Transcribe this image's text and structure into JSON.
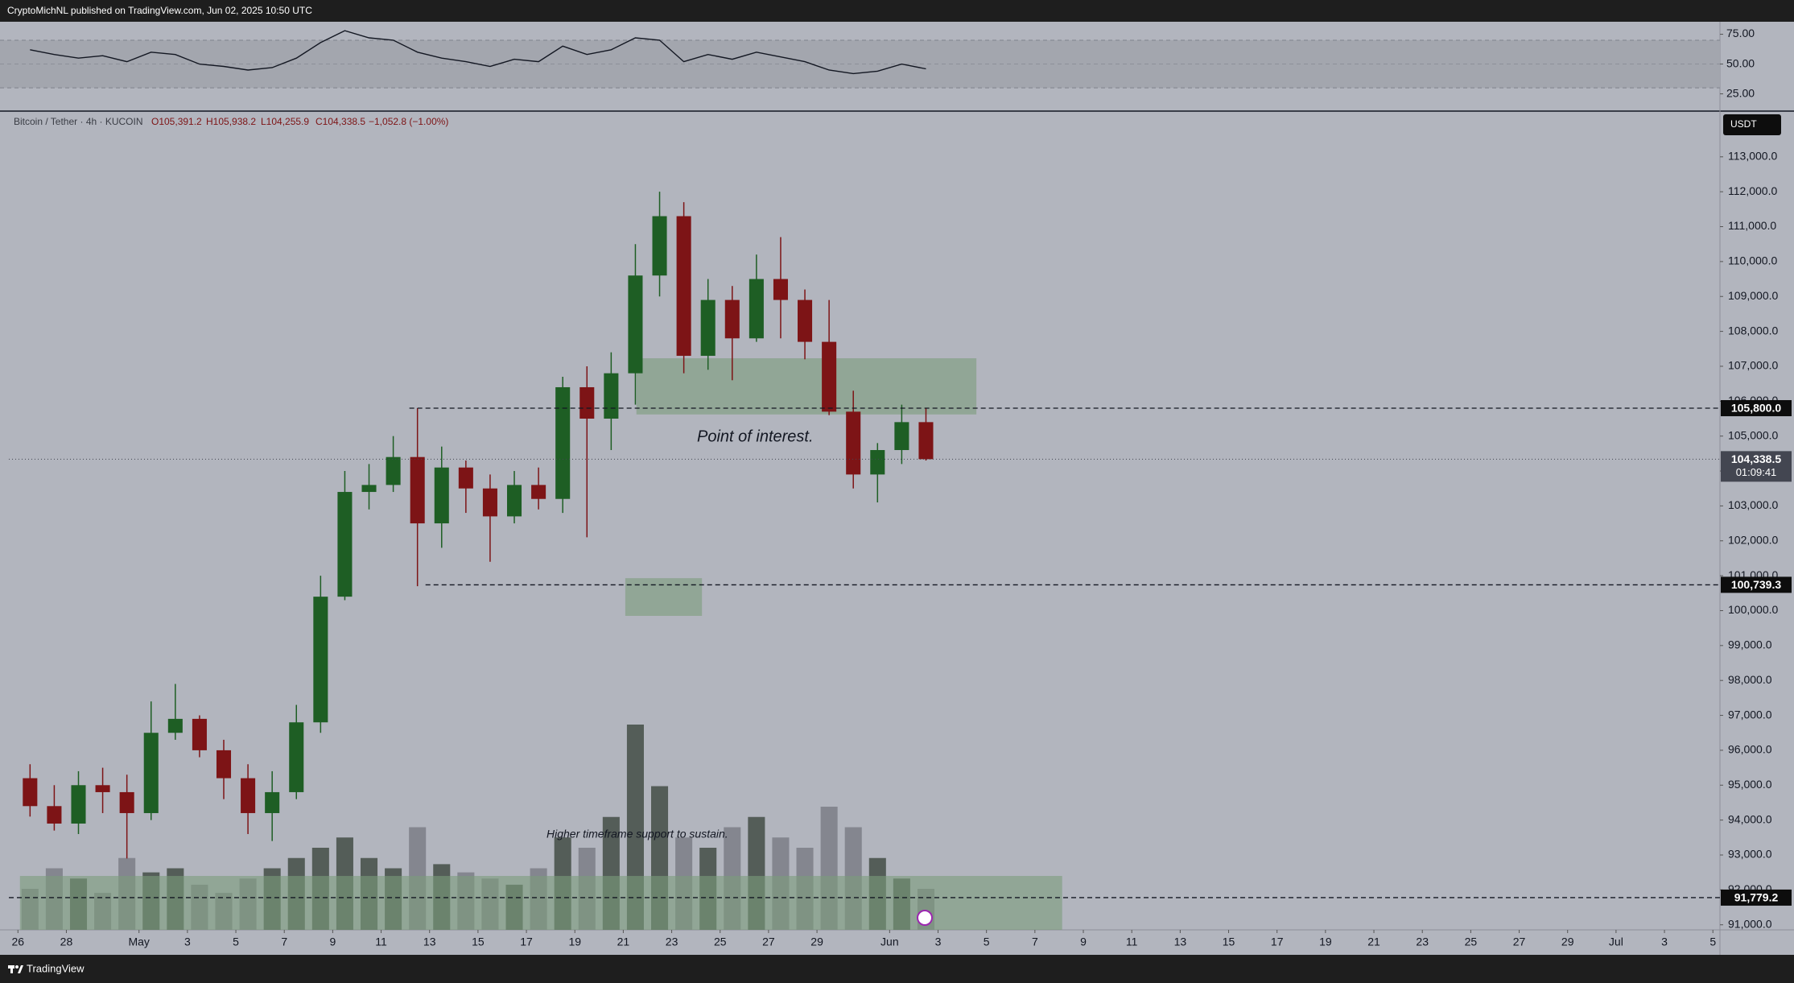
{
  "header": {
    "publisher": "CryptoMichNL published on TradingView.com, Jun 02, 2025 10:50 UTC"
  },
  "footer": {
    "brand": "TradingView"
  },
  "chart_data": {
    "type": "candlestick",
    "legend": {
      "symbol": "Bitcoin / Tether · 4h · KUCOIN",
      "open": "O105,391.2",
      "high": "H105,938.2",
      "low": "L104,255.9",
      "close": "C104,338.5",
      "change": "−1,052.8 (−1.00%)"
    },
    "currency": "USDT",
    "x": [
      "2025-04-26",
      "2025-04-27",
      "2025-04-28",
      "2025-04-29",
      "2025-04-30",
      "2025-05-01",
      "2025-05-02",
      "2025-05-03",
      "2025-05-04",
      "2025-05-05",
      "2025-05-06",
      "2025-05-07",
      "2025-05-08",
      "2025-05-09",
      "2025-05-10",
      "2025-05-11",
      "2025-05-12",
      "2025-05-13",
      "2025-05-14",
      "2025-05-15",
      "2025-05-16",
      "2025-05-17",
      "2025-05-18",
      "2025-05-19",
      "2025-05-20",
      "2025-05-21",
      "2025-05-22",
      "2025-05-23",
      "2025-05-24",
      "2025-05-25",
      "2025-05-26",
      "2025-05-27",
      "2025-05-28",
      "2025-05-29",
      "2025-05-30",
      "2025-05-31",
      "2025-06-01",
      "2025-06-02"
    ],
    "open": [
      95200,
      94400,
      93900,
      95000,
      94800,
      94200,
      96500,
      96900,
      96000,
      95200,
      94200,
      94800,
      96800,
      100400,
      103400,
      103600,
      104400,
      102500,
      104100,
      103500,
      102700,
      103600,
      103200,
      106400,
      105500,
      106800,
      109600,
      111300,
      107300,
      108900,
      107800,
      109500,
      108900,
      107700,
      105700,
      103900,
      104600,
      105400
    ],
    "high": [
      95600,
      95000,
      95400,
      95500,
      95300,
      97400,
      97900,
      97000,
      96300,
      95600,
      95400,
      97300,
      101000,
      104000,
      104200,
      105000,
      105800,
      104700,
      104300,
      103900,
      104000,
      104100,
      106700,
      107000,
      107400,
      110500,
      112000,
      111700,
      109500,
      109300,
      110200,
      110700,
      109200,
      108900,
      106300,
      104800,
      105900,
      105800
    ],
    "low": [
      94100,
      93700,
      93600,
      94200,
      92900,
      94000,
      96300,
      95800,
      94600,
      93600,
      93400,
      94600,
      96500,
      100300,
      102900,
      103400,
      100700,
      101800,
      102800,
      101400,
      102500,
      102900,
      102800,
      102100,
      104600,
      105900,
      109000,
      106800,
      106900,
      106600,
      107700,
      107800,
      107200,
      105600,
      103500,
      103100,
      104200,
      104300
    ],
    "close": [
      94400,
      93900,
      95000,
      94800,
      94200,
      96500,
      96900,
      96000,
      95200,
      94200,
      94800,
      96800,
      100400,
      103400,
      103600,
      104400,
      102500,
      104100,
      103500,
      102700,
      103600,
      103200,
      106400,
      105500,
      106800,
      109600,
      111300,
      107300,
      108900,
      107800,
      109500,
      108900,
      107700,
      105700,
      103900,
      104600,
      105400,
      104338.5
    ],
    "up_color": "#1e5e24",
    "down_color": "#7d1416",
    "xlim": [
      "2025-04-25T15:00:00Z",
      "2025-07-05T07:00:00Z"
    ],
    "xticks": [
      {
        "value": "2025-04-26",
        "label": "26"
      },
      {
        "value": "2025-04-28",
        "label": "28"
      },
      {
        "value": "2025-05-01",
        "label": "May"
      },
      {
        "value": "2025-05-03",
        "label": "3"
      },
      {
        "value": "2025-05-05",
        "label": "5"
      },
      {
        "value": "2025-05-07",
        "label": "7"
      },
      {
        "value": "2025-05-09",
        "label": "9"
      },
      {
        "value": "2025-05-11",
        "label": "11"
      },
      {
        "value": "2025-05-13",
        "label": "13"
      },
      {
        "value": "2025-05-15",
        "label": "15"
      },
      {
        "value": "2025-05-17",
        "label": "17"
      },
      {
        "value": "2025-05-19",
        "label": "19"
      },
      {
        "value": "2025-05-21",
        "label": "21"
      },
      {
        "value": "2025-05-23",
        "label": "23"
      },
      {
        "value": "2025-05-25",
        "label": "25"
      },
      {
        "value": "2025-05-27",
        "label": "27"
      },
      {
        "value": "2025-05-29",
        "label": "29"
      },
      {
        "value": "2025-06-01",
        "label": "Jun"
      },
      {
        "value": "2025-06-03",
        "label": "3"
      },
      {
        "value": "2025-06-05",
        "label": "5"
      },
      {
        "value": "2025-06-07",
        "label": "7"
      },
      {
        "value": "2025-06-09",
        "label": "9"
      },
      {
        "value": "2025-06-11",
        "label": "11"
      },
      {
        "value": "2025-06-13",
        "label": "13"
      },
      {
        "value": "2025-06-15",
        "label": "15"
      },
      {
        "value": "2025-06-17",
        "label": "17"
      },
      {
        "value": "2025-06-19",
        "label": "19"
      },
      {
        "value": "2025-06-21",
        "label": "21"
      },
      {
        "value": "2025-06-23",
        "label": "23"
      },
      {
        "value": "2025-06-25",
        "label": "25"
      },
      {
        "value": "2025-06-27",
        "label": "27"
      },
      {
        "value": "2025-06-29",
        "label": "29"
      },
      {
        "value": "2025-07-01",
        "label": "Jul"
      },
      {
        "value": "2025-07-03",
        "label": "3"
      },
      {
        "value": "2025-07-05",
        "label": "5"
      }
    ],
    "ylim": [
      90855,
      114310
    ],
    "yticks": [
      {
        "value": 91000,
        "label": "91,000.0"
      },
      {
        "value": 92000,
        "label": "92,000.0"
      },
      {
        "value": 93000,
        "label": "93,000.0"
      },
      {
        "value": 94000,
        "label": "94,000.0"
      },
      {
        "value": 95000,
        "label": "95,000.0"
      },
      {
        "value": 96000,
        "label": "96,000.0"
      },
      {
        "value": 97000,
        "label": "97,000.0"
      },
      {
        "value": 98000,
        "label": "98,000.0"
      },
      {
        "value": 99000,
        "label": "99,000.0"
      },
      {
        "value": 100000,
        "label": "100,000.0"
      },
      {
        "value": 101000,
        "label": "101,000.0"
      },
      {
        "value": 102000,
        "label": "102,000.0"
      },
      {
        "value": 103000,
        "label": "103,000.0"
      },
      {
        "value": 104000,
        "label": "104,000.0"
      },
      {
        "value": 105000,
        "label": "105,000.0"
      },
      {
        "value": 106000,
        "label": "106,000.0"
      },
      {
        "value": 107000,
        "label": "107,000.0"
      },
      {
        "value": 108000,
        "label": "108,000.0"
      },
      {
        "value": 109000,
        "label": "109,000.0"
      },
      {
        "value": 110000,
        "label": "110,000.0"
      },
      {
        "value": 111000,
        "label": "111,000.0"
      },
      {
        "value": 112000,
        "label": "112,000.0"
      },
      {
        "value": 113000,
        "label": "113,000.0"
      }
    ],
    "grid": false,
    "volume": {
      "values": [
        20,
        30,
        25,
        18,
        35,
        28,
        30,
        22,
        18,
        25,
        30,
        35,
        40,
        45,
        35,
        30,
        50,
        32,
        28,
        25,
        22,
        30,
        45,
        40,
        55,
        100,
        70,
        45,
        40,
        50,
        55,
        45,
        40,
        60,
        50,
        35,
        25,
        20
      ],
      "vlim": [
        0,
        100
      ],
      "up_color": "#434d46",
      "down_color": "#7b7e87"
    },
    "rsi": {
      "values": [
        62,
        58,
        55,
        57,
        52,
        60,
        58,
        50,
        48,
        45,
        47,
        55,
        68,
        78,
        72,
        70,
        60,
        55,
        52,
        48,
        54,
        52,
        65,
        58,
        62,
        72,
        70,
        52,
        58,
        54,
        60,
        56,
        52,
        45,
        42,
        44,
        50,
        46
      ],
      "ylim": [
        11.2,
        85.5
      ],
      "yticks": [
        {
          "value": 25,
          "label": "25.00"
        },
        {
          "value": 50,
          "label": "50.00"
        },
        {
          "value": 75,
          "label": "75.00"
        }
      ],
      "bands": [
        30,
        70
      ],
      "color": "#131722",
      "band_color": "#a3a6ae"
    },
    "zones": [
      {
        "from": "2025-05-21T13:00:00Z",
        "to": "2025-06-04T14:00:00Z",
        "top": 107230,
        "bottom": 105620
      },
      {
        "from": "2025-05-21T02:00:00Z",
        "to": "2025-05-24T06:00:00Z",
        "top": 100930,
        "bottom": 99850
      },
      {
        "from": "2025-04-26T02:00:00Z",
        "to": "2025-06-08T03:00:00Z",
        "top": 92400,
        "bottom": 90855
      }
    ],
    "zone_color": "#7b9c7b",
    "levels": [
      {
        "value": 105800,
        "label": "105,800.0",
        "from": "2025-05-12T04:00:00Z"
      },
      {
        "value": 100739.3,
        "label": "100,739.3",
        "from": "2025-05-12T20:00:00Z"
      },
      {
        "value": 91779.2,
        "label": "91,779.2"
      }
    ],
    "last_price": {
      "value": 104338.5,
      "label": "104,338.5",
      "countdown": "01:09:41"
    },
    "annotations": [
      "Point of interest.",
      "Higher timeframe support to sustain."
    ]
  }
}
